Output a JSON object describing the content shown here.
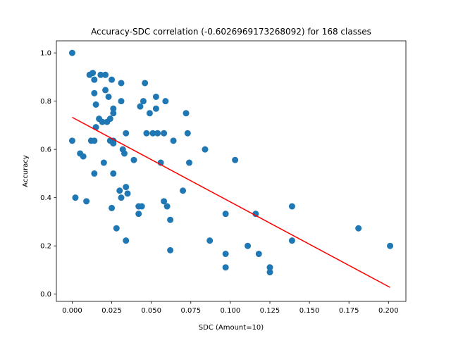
{
  "chart_data": {
    "type": "scatter",
    "title": "Accuracy-SDC correlation (-0.6026969173268092) for 168 classes",
    "xlabel": "SDC (Amount=10)",
    "ylabel": "Accuracy",
    "xlim": [
      -0.01,
      0.211
    ],
    "ylim": [
      -0.03,
      1.05
    ],
    "xticks": [
      "0.000",
      "0.025",
      "0.050",
      "0.075",
      "0.100",
      "0.125",
      "0.150",
      "0.175",
      "0.200"
    ],
    "yticks": [
      "0.0",
      "0.2",
      "0.4",
      "0.6",
      "0.8",
      "1.0"
    ],
    "grid": false,
    "point_color": "#1f77b4",
    "trend_color": "#ff0000",
    "trend_line": {
      "x": [
        0.0,
        0.201
      ],
      "y": [
        0.733,
        0.028
      ]
    },
    "points": [
      [
        0.0,
        1.0
      ],
      [
        0.0,
        0.636
      ],
      [
        0.002,
        0.4
      ],
      [
        0.005,
        0.583
      ],
      [
        0.007,
        0.571
      ],
      [
        0.009,
        0.385
      ],
      [
        0.011,
        0.909
      ],
      [
        0.012,
        0.636
      ],
      [
        0.013,
        0.917
      ],
      [
        0.014,
        0.889
      ],
      [
        0.014,
        0.833
      ],
      [
        0.014,
        0.636
      ],
      [
        0.014,
        0.5
      ],
      [
        0.015,
        0.786
      ],
      [
        0.015,
        0.692
      ],
      [
        0.017,
        0.727
      ],
      [
        0.018,
        0.909
      ],
      [
        0.019,
        0.714
      ],
      [
        0.02,
        0.545
      ],
      [
        0.021,
        0.909
      ],
      [
        0.021,
        0.846
      ],
      [
        0.022,
        0.714
      ],
      [
        0.023,
        0.818
      ],
      [
        0.024,
        0.727
      ],
      [
        0.024,
        0.636
      ],
      [
        0.025,
        0.889
      ],
      [
        0.025,
        0.357
      ],
      [
        0.026,
        0.769
      ],
      [
        0.026,
        0.75
      ],
      [
        0.026,
        0.636
      ],
      [
        0.026,
        0.625
      ],
      [
        0.026,
        0.5
      ],
      [
        0.028,
        0.273
      ],
      [
        0.03,
        0.429
      ],
      [
        0.031,
        0.875
      ],
      [
        0.031,
        0.8
      ],
      [
        0.031,
        0.4
      ],
      [
        0.032,
        0.6
      ],
      [
        0.033,
        0.583
      ],
      [
        0.034,
        0.667
      ],
      [
        0.034,
        0.444
      ],
      [
        0.034,
        0.222
      ],
      [
        0.035,
        0.417
      ],
      [
        0.039,
        0.556
      ],
      [
        0.042,
        0.364
      ],
      [
        0.042,
        0.333
      ],
      [
        0.043,
        0.778
      ],
      [
        0.044,
        0.364
      ],
      [
        0.045,
        0.8
      ],
      [
        0.046,
        0.875
      ],
      [
        0.047,
        0.667
      ],
      [
        0.049,
        0.75
      ],
      [
        0.051,
        0.667
      ],
      [
        0.053,
        0.818
      ],
      [
        0.053,
        0.769
      ],
      [
        0.054,
        0.667
      ],
      [
        0.056,
        0.545
      ],
      [
        0.058,
        0.667
      ],
      [
        0.058,
        0.385
      ],
      [
        0.059,
        0.8
      ],
      [
        0.06,
        0.364
      ],
      [
        0.062,
        0.308
      ],
      [
        0.062,
        0.182
      ],
      [
        0.064,
        0.636
      ],
      [
        0.07,
        0.429
      ],
      [
        0.072,
        0.75
      ],
      [
        0.073,
        0.667
      ],
      [
        0.074,
        0.545
      ],
      [
        0.084,
        0.6
      ],
      [
        0.087,
        0.222
      ],
      [
        0.097,
        0.333
      ],
      [
        0.097,
        0.167
      ],
      [
        0.097,
        0.111
      ],
      [
        0.103,
        0.556
      ],
      [
        0.111,
        0.2
      ],
      [
        0.116,
        0.333
      ],
      [
        0.118,
        0.167
      ],
      [
        0.125,
        0.111
      ],
      [
        0.125,
        0.091
      ],
      [
        0.139,
        0.364
      ],
      [
        0.139,
        0.222
      ],
      [
        0.181,
        0.273
      ],
      [
        0.201,
        0.2
      ]
    ]
  }
}
